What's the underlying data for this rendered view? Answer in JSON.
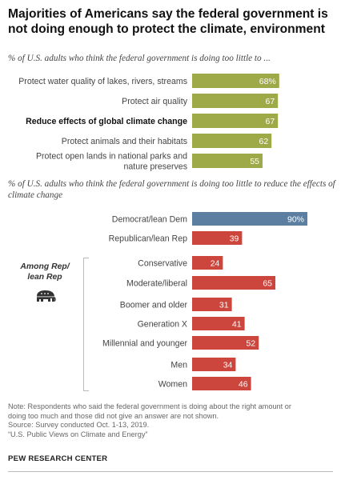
{
  "title": "Majorities of Americans say the federal government is not doing enough to protect the climate, environment",
  "colors": {
    "green": "#9eaa47",
    "blue": "#5b7ea1",
    "red": "#cc463d"
  },
  "chart_data": [
    {
      "type": "bar",
      "orientation": "horizontal",
      "title": "% of U.S. adults who think the federal government is doing too little to ...",
      "categories": [
        "Protect water quality of lakes, rivers, streams",
        "Protect air quality",
        "Reduce effects of global climate change",
        "Protect animals and their habitats",
        "Protect open lands in national parks and nature preserves"
      ],
      "category_lines": [
        [
          "Protect water quality of lakes, rivers, streams"
        ],
        [
          "Protect air quality"
        ],
        [
          "Reduce effects of global climate change"
        ],
        [
          "Protect animals and their habitats"
        ],
        [
          "Protect open lands in national parks and",
          "nature preserves"
        ]
      ],
      "values": [
        68,
        67,
        67,
        62,
        55
      ],
      "value_labels": [
        "68%",
        "67",
        "67",
        "62",
        "55"
      ],
      "highlighted": [
        false,
        false,
        true,
        false,
        false
      ],
      "bar_color": "#9eaa47",
      "xlim": [
        0,
        100
      ]
    },
    {
      "type": "bar",
      "orientation": "horizontal",
      "title": "% of U.S. adults who think the federal government is doing too little to reduce the effects of climate change",
      "group_label": [
        "Among Rep/",
        "lean Rep"
      ],
      "group_icon": "elephant-icon",
      "categories": [
        "Democrat/lean Dem",
        "Republican/lean Rep",
        "Conservative",
        "Moderate/liberal",
        "Boomer and older",
        "Generation X",
        "Millennial and younger",
        "Men",
        "Women"
      ],
      "values": [
        90,
        39,
        24,
        65,
        31,
        41,
        52,
        34,
        46
      ],
      "value_labels": [
        "90%",
        "39",
        "24",
        "65",
        "31",
        "41",
        "52",
        "34",
        "46"
      ],
      "bar_colors": [
        "#5b7ea1",
        "#cc463d",
        "#cc463d",
        "#cc463d",
        "#cc463d",
        "#cc463d",
        "#cc463d",
        "#cc463d",
        "#cc463d"
      ],
      "xlim": [
        0,
        100
      ]
    }
  ],
  "notes": [
    "Note: Respondents who said the federal government is doing about the right amount or",
    "doing too much and those did not give an answer are not shown.",
    "Source: Survey conducted Oct. 1-13, 2019.",
    "“U.S. Public Views on Climate and Energy”"
  ],
  "source_org": "PEW RESEARCH CENTER"
}
